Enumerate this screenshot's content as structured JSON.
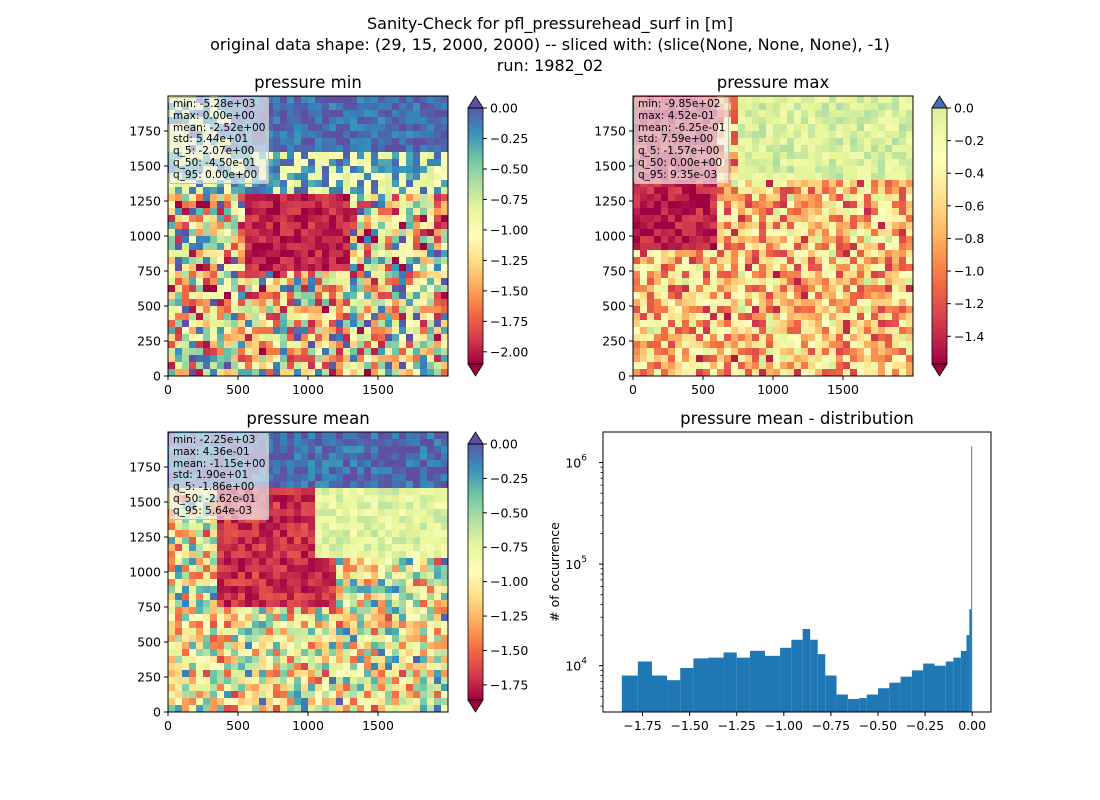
{
  "suptitle": {
    "line1": "Sanity-Check for pfl_pressurehead_surf in [m]",
    "line2": "original data shape: (29, 15, 2000, 2000) -- sliced with: (slice(None, None, None), -1)",
    "line3": "run: 1982_02"
  },
  "colormap": "Spectral",
  "chart_data": [
    {
      "type": "heatmap",
      "title": "pressure min",
      "xlim": [
        0,
        2000
      ],
      "ylim": [
        0,
        2000
      ],
      "xticks": [
        "0",
        "500",
        "1000",
        "1500"
      ],
      "yticks": [
        "0",
        "250",
        "500",
        "750",
        "1000",
        "1250",
        "1500",
        "1750"
      ],
      "colorbar": {
        "range": [
          -2.1,
          0.0
        ],
        "ticks": [
          "0.00",
          "−0.25",
          "−0.50",
          "−0.75",
          "−1.00",
          "−1.25",
          "−1.50",
          "−1.75",
          "−2.00"
        ],
        "tick_values": [
          0,
          -0.25,
          -0.5,
          -0.75,
          -1.0,
          -1.25,
          -1.5,
          -1.75,
          -2.0
        ],
        "extend": "both"
      },
      "stats": [
        "min: -5.28e+03",
        "max: 0.00e+00",
        "mean: -2.52e+00",
        "std: 5.44e+01",
        "q_5: -2.07e+00",
        "q_50: -4.50e-01",
        "q_95: 0.00e+00"
      ]
    },
    {
      "type": "heatmap",
      "title": "pressure max",
      "xlim": [
        0,
        2000
      ],
      "ylim": [
        0,
        2000
      ],
      "xticks": [
        "0",
        "500",
        "1000",
        "1500"
      ],
      "yticks": [
        "0",
        "250",
        "500",
        "750",
        "1000",
        "1250",
        "1500",
        "1750"
      ],
      "colorbar": {
        "range": [
          -1.57,
          0.0
        ],
        "ticks": [
          "0.0",
          "−0.2",
          "−0.4",
          "−0.6",
          "−0.8",
          "−1.0",
          "−1.2",
          "−1.4"
        ],
        "tick_values": [
          0,
          -0.2,
          -0.4,
          -0.6,
          -0.8,
          -1.0,
          -1.2,
          -1.4
        ],
        "extend": "both"
      },
      "stats": [
        "min: -9.85e+02",
        "max: 4.52e-01",
        "mean: -6.25e-01",
        "std: 7.59e+00",
        "q_5: -1.57e+00",
        "q_50: 0.00e+00",
        "q_95: 9.35e-03"
      ]
    },
    {
      "type": "heatmap",
      "title": "pressure mean",
      "xlim": [
        0,
        2000
      ],
      "ylim": [
        0,
        2000
      ],
      "xticks": [
        "0",
        "500",
        "1000",
        "1500"
      ],
      "yticks": [
        "0",
        "250",
        "500",
        "750",
        "1000",
        "1250",
        "1500",
        "1750"
      ],
      "colorbar": {
        "range": [
          -1.86,
          0.0
        ],
        "ticks": [
          "0.00",
          "−0.25",
          "−0.50",
          "−0.75",
          "−1.00",
          "−1.25",
          "−1.50",
          "−1.75"
        ],
        "tick_values": [
          0,
          -0.25,
          -0.5,
          -0.75,
          -1.0,
          -1.25,
          -1.5,
          -1.75
        ],
        "extend": "both"
      },
      "stats": [
        "min: -2.25e+03",
        "max: 4.36e-01",
        "mean: -1.15e+00",
        "std: 1.90e+01",
        "q_5: -1.86e+00",
        "q_50: -2.62e-01",
        "q_95: 5.64e-03"
      ]
    },
    {
      "type": "bar",
      "title": "pressure mean - distribution",
      "ylabel": "# of occurrence",
      "xlabel": "",
      "yscale": "log",
      "xlim": [
        -1.96,
        0.1
      ],
      "ylim": [
        3500,
        2000000
      ],
      "color": "#1f77b4",
      "xticks": [
        "−1.75",
        "−1.50",
        "−1.25",
        "−1.00",
        "−0.75",
        "−0.50",
        "−0.25",
        "0.00"
      ],
      "xtick_values": [
        -1.75,
        -1.5,
        -1.25,
        -1.0,
        -0.75,
        -0.5,
        -0.25,
        0.0
      ],
      "yticks": [
        "10",
        "10",
        "10"
      ],
      "ytick_exponents": [
        "4",
        "5",
        "6"
      ],
      "ytick_values": [
        10000,
        100000,
        1000000
      ],
      "bins": [
        -1.86,
        -1.775,
        -1.7,
        -1.62,
        -1.55,
        -1.48,
        -1.4,
        -1.32,
        -1.25,
        -1.18,
        -1.1,
        -1.02,
        -0.96,
        -0.9,
        -0.86,
        -0.82,
        -0.78,
        -0.72,
        -0.66,
        -0.6,
        -0.56,
        -0.5,
        -0.44,
        -0.38,
        -0.32,
        -0.26,
        -0.2,
        -0.14,
        -0.1,
        -0.06,
        -0.03,
        -0.015,
        -0.005,
        0.0
      ],
      "counts": [
        8000,
        11000,
        8000,
        7200,
        9500,
        11800,
        12000,
        13500,
        12000,
        14000,
        12500,
        15000,
        18000,
        23000,
        18000,
        13000,
        8000,
        5200,
        4700,
        4800,
        5200,
        6000,
        6800,
        7800,
        9000,
        10500,
        10000,
        11000,
        12000,
        14000,
        20000,
        36000,
        1450000
      ]
    }
  ]
}
